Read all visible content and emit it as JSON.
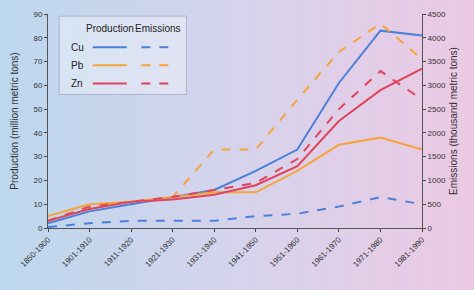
{
  "chart_data": {
    "type": "line",
    "categories": [
      "1850-1900",
      "1901-1910",
      "1911-1920",
      "1921-1930",
      "1931-1940",
      "1941-1950",
      "1951-1960",
      "1961-1970",
      "1971-1980",
      "1981-1990"
    ],
    "y_label": "Production (million metric tons)",
    "y2_label": "Emissions (thousand metric tons)",
    "ylim": [
      0,
      90
    ],
    "yticks": [
      0,
      10,
      20,
      30,
      40,
      50,
      60,
      70,
      80,
      90
    ],
    "y2lim": [
      0,
      4500
    ],
    "y2ticks": [
      0,
      500,
      1000,
      1500,
      2000,
      2500,
      3000,
      3500,
      4000,
      4500
    ],
    "grid": false,
    "legend": "upper left",
    "series": [
      {
        "name": "Cu",
        "group": "Production",
        "color": "#4a80d8",
        "line_style": "solid",
        "values": [
          2,
          7,
          10,
          13,
          16,
          24,
          33,
          61,
          83,
          81
        ]
      },
      {
        "name": "Pb",
        "group": "Production",
        "color": "#f5a43a",
        "line_style": "solid",
        "values": [
          5,
          10,
          11,
          13,
          15,
          15,
          24,
          35,
          38,
          33
        ]
      },
      {
        "name": "Zn",
        "group": "Production",
        "color": "#e0435c",
        "line_style": "solid",
        "values": [
          3,
          8,
          11,
          12,
          14,
          18,
          26,
          45,
          58,
          67
        ]
      },
      {
        "name": "Cu",
        "group": "Emissions",
        "axis": "y2",
        "color": "#4a80d8",
        "line_style": "dashed",
        "values": [
          20,
          100,
          150,
          150,
          150,
          250,
          300,
          450,
          650,
          500
        ]
      },
      {
        "name": "Pb",
        "group": "Emissions",
        "axis": "y2",
        "color": "#f5a43a",
        "line_style": "dashed",
        "values": [
          150,
          450,
          550,
          650,
          1650,
          1650,
          2700,
          3700,
          4300,
          3550
        ]
      },
      {
        "name": "Zn",
        "group": "Emissions",
        "axis": "y2",
        "color": "#e0435c",
        "line_style": "dashed",
        "values": [
          150,
          450,
          550,
          650,
          800,
          950,
          1450,
          2500,
          3300,
          2700
        ]
      }
    ]
  }
}
